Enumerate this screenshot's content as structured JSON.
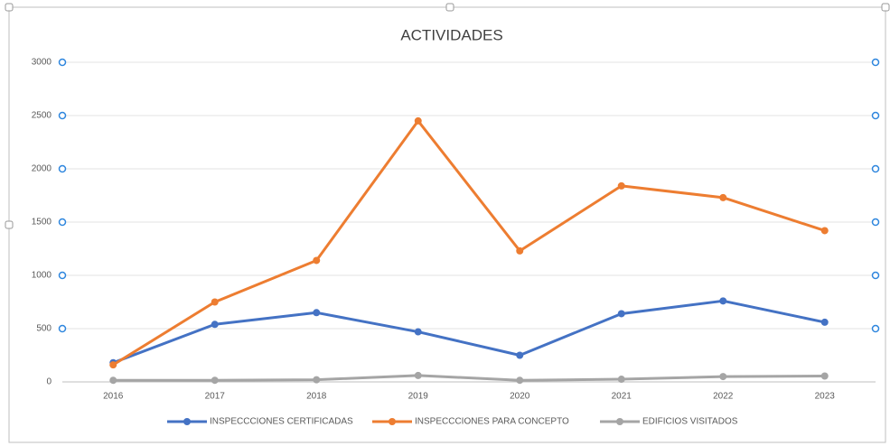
{
  "chart_data": {
    "type": "line",
    "title": "ACTIVIDADES",
    "categories": [
      "2016",
      "2017",
      "2018",
      "2019",
      "2020",
      "2021",
      "2022",
      "2023"
    ],
    "series": [
      {
        "name": "INSPECCCIONES CERTIFICADAS",
        "color": "#4472c4",
        "values": [
          180,
          540,
          650,
          470,
          250,
          640,
          760,
          560
        ]
      },
      {
        "name": "INSPECCCIONES PARA CONCEPTO",
        "color": "#ed7d31",
        "values": [
          160,
          750,
          1140,
          2450,
          1230,
          1840,
          1730,
          1420
        ]
      },
      {
        "name": "EDIFICIOS VISITADOS",
        "color": "#a5a5a5",
        "values": [
          15,
          15,
          20,
          60,
          15,
          25,
          50,
          55
        ]
      }
    ],
    "ylim": [
      0,
      3000
    ],
    "yticks": [
      0,
      500,
      1000,
      1500,
      2000,
      2500,
      3000
    ],
    "grid": true,
    "legend": "bottom"
  }
}
